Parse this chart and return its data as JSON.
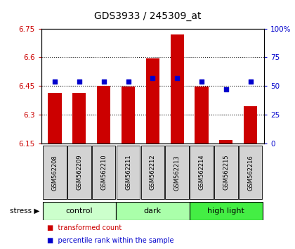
{
  "title": "GDS3933 / 245309_at",
  "samples": [
    "GSM562208",
    "GSM562209",
    "GSM562210",
    "GSM562211",
    "GSM562212",
    "GSM562213",
    "GSM562214",
    "GSM562215",
    "GSM562216"
  ],
  "bar_values": [
    6.415,
    6.415,
    6.45,
    6.445,
    6.595,
    6.72,
    6.445,
    6.165,
    6.345
  ],
  "percentile_values": [
    54,
    54,
    54,
    54,
    57,
    57,
    54,
    47,
    54
  ],
  "bar_baseline": 6.15,
  "ylim_left": [
    6.15,
    6.75
  ],
  "ylim_right": [
    0,
    100
  ],
  "yticks_left": [
    6.15,
    6.3,
    6.45,
    6.6,
    6.75
  ],
  "ytick_labels_left": [
    "6.15",
    "6.3",
    "6.45",
    "6.6",
    "6.75"
  ],
  "yticks_right": [
    0,
    25,
    50,
    75,
    100
  ],
  "ytick_labels_right": [
    "0",
    "25",
    "50",
    "75",
    "100%"
  ],
  "groups": [
    {
      "label": "control",
      "indices": [
        0,
        1,
        2
      ],
      "color": "#ccffcc"
    },
    {
      "label": "dark",
      "indices": [
        3,
        4,
        5
      ],
      "color": "#aaffaa"
    },
    {
      "label": "high light",
      "indices": [
        6,
        7,
        8
      ],
      "color": "#44ee44"
    }
  ],
  "bar_color": "#cc0000",
  "dot_color": "#0000cc",
  "tick_label_color_left": "#cc0000",
  "tick_label_color_right": "#0000cc",
  "bar_width": 0.55,
  "stress_label": "stress",
  "legend_items": [
    {
      "color": "#cc0000",
      "label": "transformed count"
    },
    {
      "color": "#0000cc",
      "label": "percentile rank within the sample"
    }
  ],
  "sample_box_color": "#d3d3d3",
  "fig_bg": "#ffffff"
}
